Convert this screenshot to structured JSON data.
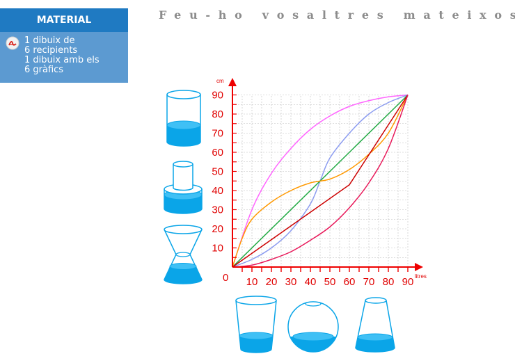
{
  "sidebar": {
    "header": "MATERIAL",
    "link_lines": [
      "1 dibuix de",
      "6 recipients",
      "1 dibuix amb els",
      "6 gràfics"
    ]
  },
  "title": "Feu-ho vosaltres mateixos",
  "chart_data": {
    "type": "line",
    "xlabel": "litres",
    "ylabel": "cm",
    "origin_label": "0",
    "x_ticks": [
      "10",
      "20",
      "30",
      "40",
      "50",
      "60",
      "70",
      "80",
      "90"
    ],
    "y_ticks": [
      "10",
      "20",
      "30",
      "40",
      "50",
      "60",
      "70",
      "80",
      "90"
    ],
    "xlim": [
      0,
      90
    ],
    "ylim": [
      0,
      90
    ],
    "grid": true,
    "series": [
      {
        "color": "#ff66ff",
        "points": [
          [
            0,
            0
          ],
          [
            10,
            30
          ],
          [
            20,
            49
          ],
          [
            30,
            62
          ],
          [
            40,
            72
          ],
          [
            50,
            79
          ],
          [
            60,
            84
          ],
          [
            70,
            87
          ],
          [
            80,
            89
          ],
          [
            90,
            90
          ]
        ]
      },
      {
        "color": "#8c9cf0",
        "points": [
          [
            0,
            0
          ],
          [
            10,
            4
          ],
          [
            20,
            10
          ],
          [
            30,
            19
          ],
          [
            40,
            33
          ],
          [
            45,
            45
          ],
          [
            50,
            57
          ],
          [
            60,
            70
          ],
          [
            70,
            80
          ],
          [
            80,
            86
          ],
          [
            90,
            90
          ]
        ]
      },
      {
        "color": "#22aa44",
        "points": [
          [
            0,
            0
          ],
          [
            90,
            90
          ]
        ]
      },
      {
        "color": "#ff9900",
        "points": [
          [
            0,
            0
          ],
          [
            5,
            15
          ],
          [
            10,
            25
          ],
          [
            20,
            34
          ],
          [
            30,
            40
          ],
          [
            40,
            44
          ],
          [
            50,
            46
          ],
          [
            60,
            51
          ],
          [
            70,
            59
          ],
          [
            80,
            70
          ],
          [
            90,
            90
          ]
        ]
      },
      {
        "color": "#cc0000",
        "points": [
          [
            0,
            0
          ],
          [
            60,
            43
          ],
          [
            90,
            90
          ]
        ]
      },
      {
        "color": "#e8195a",
        "points": [
          [
            0,
            0
          ],
          [
            10,
            1
          ],
          [
            20,
            4
          ],
          [
            30,
            8
          ],
          [
            40,
            14
          ],
          [
            50,
            21
          ],
          [
            60,
            31
          ],
          [
            70,
            44
          ],
          [
            80,
            62
          ],
          [
            90,
            90
          ]
        ]
      }
    ]
  },
  "colors": {
    "water": "#0aa5e8",
    "axis": "#ee0000",
    "grid": "#bdbdbd",
    "header_bg": "#1f7ac2",
    "panel_bg": "#5c9ad1",
    "title": "#8c8c8c"
  },
  "containers": [
    {
      "name": "cylinder-container"
    },
    {
      "name": "stepped-cylinder-container"
    },
    {
      "name": "hourglass-container"
    },
    {
      "name": "tapered-cup-container"
    },
    {
      "name": "sphere-container"
    },
    {
      "name": "truncated-cone-container"
    }
  ]
}
